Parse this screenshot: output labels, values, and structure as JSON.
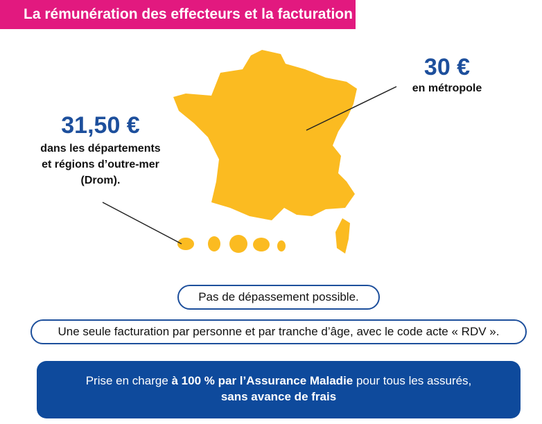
{
  "header": {
    "title": "La rémunération des effecteurs et la facturation"
  },
  "metropole": {
    "price": "30 €",
    "caption": "en métropole"
  },
  "drom": {
    "price": "31,50 €",
    "caption_lines": [
      "dans les départements",
      "et régions d’outre-mer",
      "(Drom)."
    ]
  },
  "notes": {
    "no_overrun": "Pas de dépassement possible.",
    "billing": "Une seule facturation par personne et par tranche d’âge, avec le code acte « RDV »."
  },
  "coverage": {
    "prefix": "Prise en charge ",
    "bold": "à 100 % par l’Assurance Maladie",
    "suffix": " pour tous les assurés,",
    "line2": "sans avance de frais"
  },
  "colors": {
    "banner": "#e2197f",
    "map": "#fbbb21",
    "accent": "#1d4f9c",
    "box": "#0e4a9c"
  }
}
